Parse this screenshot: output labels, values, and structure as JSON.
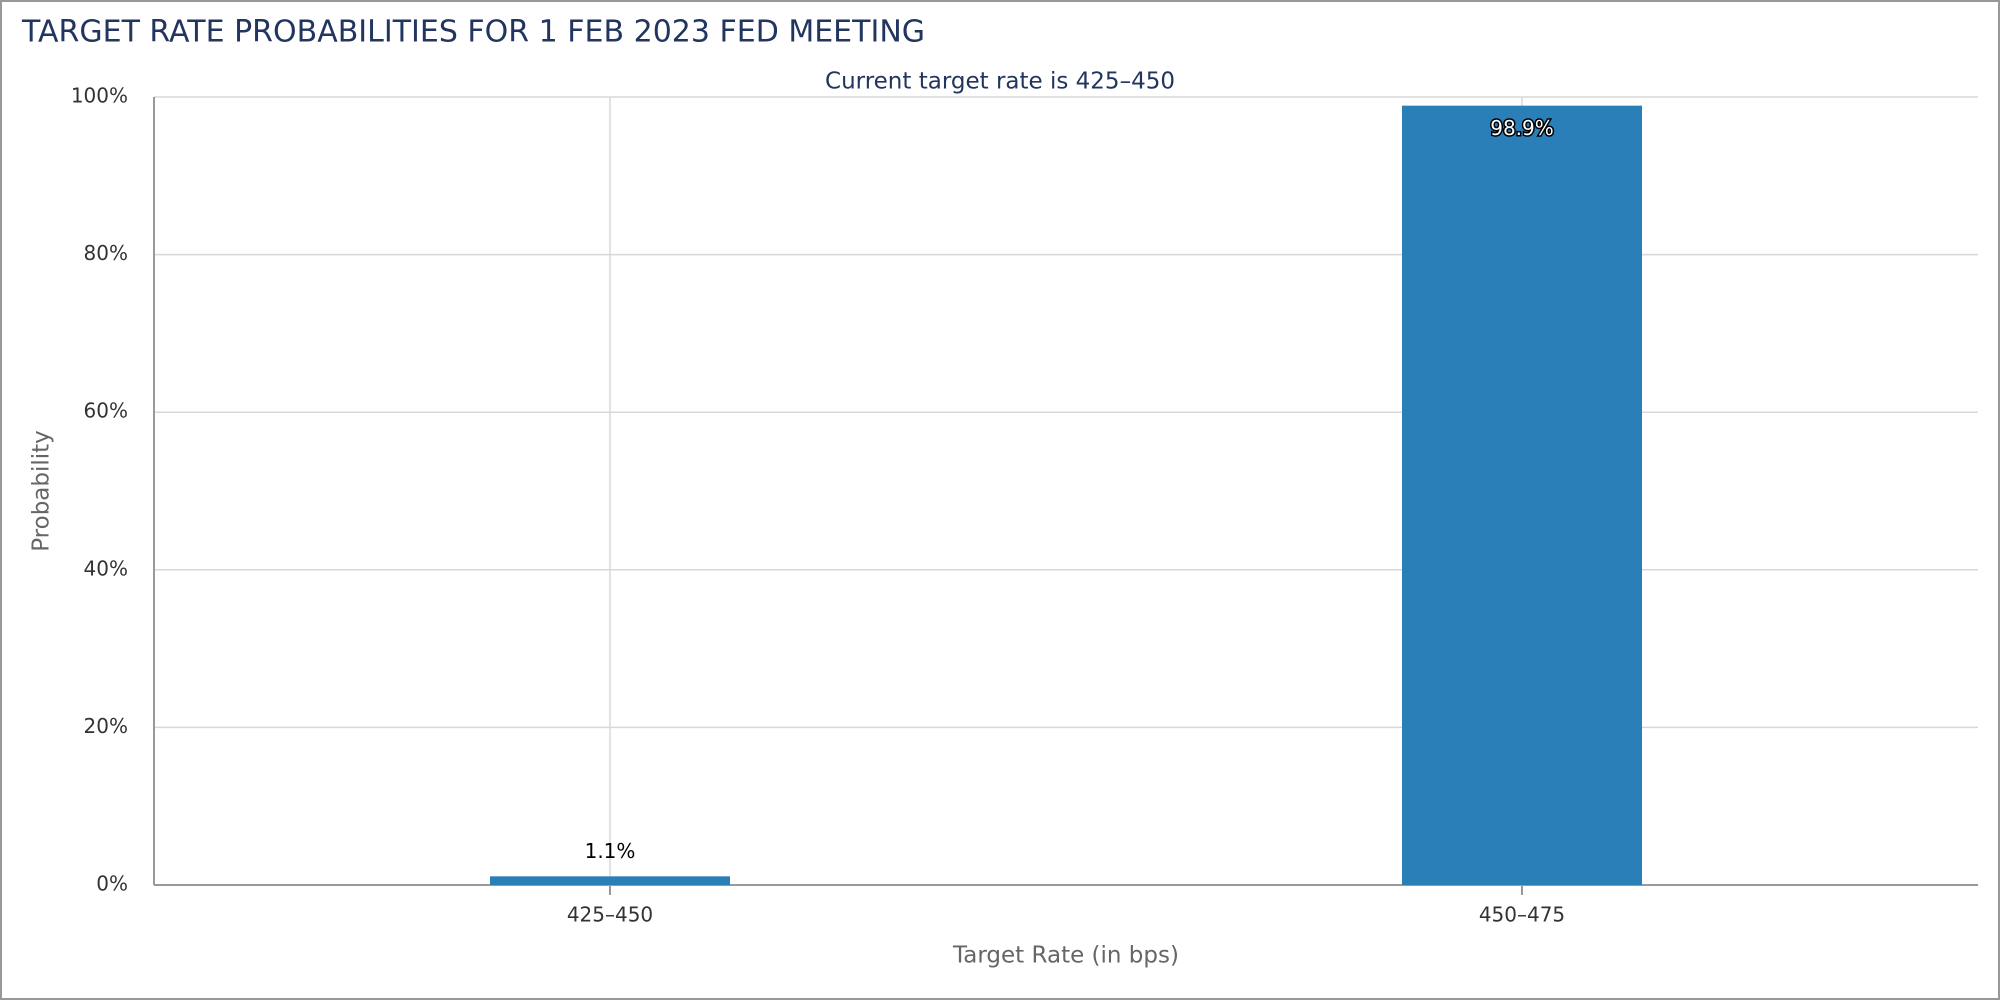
{
  "chart_data": {
    "type": "bar",
    "title": "TARGET RATE PROBABILITIES FOR 1 FEB 2023 FED MEETING",
    "subtitle": "Current target rate is 425–450",
    "x_label": "Target Rate (in bps)",
    "y_label": "Probability",
    "categories": [
      "425–450",
      "450–475"
    ],
    "values": [
      1.1,
      98.9
    ],
    "value_labels": [
      "1.1%",
      "98.9%"
    ],
    "color": "#2a7fb8",
    "ylim": [
      0,
      100
    ],
    "yticks": [
      {
        "value": 0,
        "label": "0%"
      },
      {
        "value": 20,
        "label": "20%"
      },
      {
        "value": 40,
        "label": "40%"
      },
      {
        "value": 60,
        "label": "60%"
      },
      {
        "value": 80,
        "label": "80%"
      },
      {
        "value": 100,
        "label": "100%"
      }
    ],
    "grid": true
  }
}
